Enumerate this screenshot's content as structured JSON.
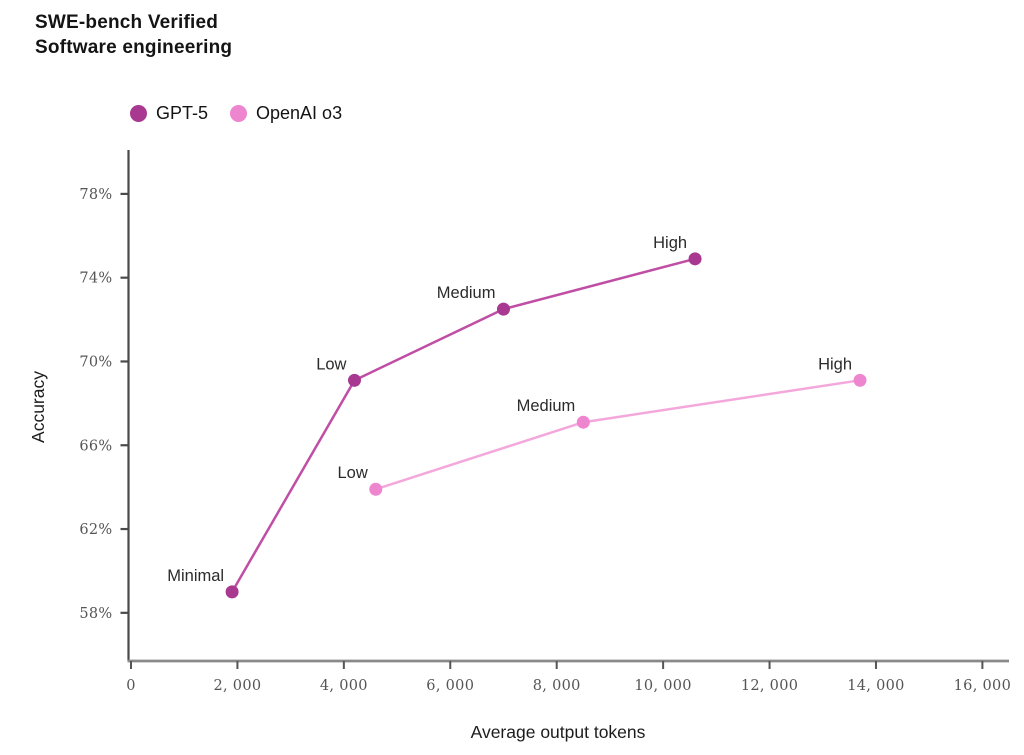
{
  "header": {
    "title_line1": "SWE-bench Verified",
    "title_line2": "Software engineering"
  },
  "legend": {
    "items": [
      {
        "label": "GPT-5",
        "color": "#a83890"
      },
      {
        "label": "OpenAI o3",
        "color": "#ee85cf"
      }
    ]
  },
  "chart_data": {
    "type": "line",
    "title": "SWE-bench Verified",
    "subtitle": "Software engineering",
    "xlabel": "Average output tokens",
    "ylabel": "Accuracy",
    "xlim": [
      0,
      16500
    ],
    "ylim": [
      55.7,
      80.0
    ],
    "grid": false,
    "legend_position": "top-left",
    "x_ticks": [
      {
        "value": 0,
        "label": "0"
      },
      {
        "value": 2000,
        "label": "2, 000"
      },
      {
        "value": 4000,
        "label": "4, 000"
      },
      {
        "value": 6000,
        "label": "6, 000"
      },
      {
        "value": 8000,
        "label": "8, 000"
      },
      {
        "value": 10000,
        "label": "10, 000"
      },
      {
        "value": 12000,
        "label": "12, 000"
      },
      {
        "value": 14000,
        "label": "14, 000"
      },
      {
        "value": 16000,
        "label": "16, 000"
      }
    ],
    "y_ticks": [
      {
        "value": 58,
        "label": "58%"
      },
      {
        "value": 62,
        "label": "62%"
      },
      {
        "value": 66,
        "label": "66%"
      },
      {
        "value": 70,
        "label": "70%"
      },
      {
        "value": 74,
        "label": "74%"
      },
      {
        "value": 78,
        "label": "78%"
      }
    ],
    "series": [
      {
        "name": "GPT-5",
        "line_color": "#bf4ea4",
        "marker_color": "#a83890",
        "points": [
          {
            "label": "Minimal",
            "tokens": 1900,
            "accuracy": 59.0
          },
          {
            "label": "Low",
            "tokens": 4200,
            "accuracy": 69.1
          },
          {
            "label": "Medium",
            "tokens": 7000,
            "accuracy": 72.5
          },
          {
            "label": "High",
            "tokens": 10600,
            "accuracy": 74.9
          }
        ]
      },
      {
        "name": "OpenAI o3",
        "line_color": "#f4a7db",
        "marker_color": "#ee85cf",
        "points": [
          {
            "label": "Low",
            "tokens": 4600,
            "accuracy": 63.9
          },
          {
            "label": "Medium",
            "tokens": 8500,
            "accuracy": 67.1
          },
          {
            "label": "High",
            "tokens": 13700,
            "accuracy": 69.1
          }
        ]
      }
    ]
  }
}
